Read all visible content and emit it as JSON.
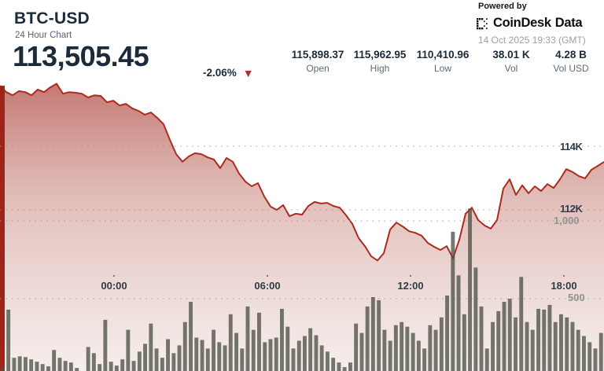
{
  "header": {
    "symbol": "BTC-USD",
    "subtitle": "24 Hour Chart",
    "price": "113,505.45",
    "change": "-2.06%",
    "change_direction": "down",
    "stats": [
      {
        "value": "115,898.37",
        "label": "Open"
      },
      {
        "value": "115,962.95",
        "label": "High"
      },
      {
        "value": "110,410.96",
        "label": "Low"
      },
      {
        "value": "38.01 K",
        "label": "Vol"
      },
      {
        "value": "4.28 B",
        "label": "Vol USD"
      }
    ]
  },
  "branding": {
    "powered_by": "Powered by",
    "logo_word1": "CoinDesk",
    "logo_word2": "Data",
    "timestamp": "14 Oct 2025 19:33 (GMT)"
  },
  "colors": {
    "line_red": "#ae2a1e",
    "stripe_red": "#9e2419",
    "triangle_red": "#b03226",
    "dark_navy": "#1c2b3a",
    "volume_bar": "rgba(78,82,70,0.78)",
    "grid_dot": "#9a948f"
  },
  "chart_data": {
    "type": "area",
    "title": "BTC-USD 24 Hour Chart",
    "x_ticks": [
      "00:00",
      "06:00",
      "12:00",
      "18:00"
    ],
    "price_axis_labels": [
      "114K",
      "112K"
    ],
    "volume_axis_labels": [
      "1,000",
      "500"
    ],
    "price_axis_range_visible": [
      110000,
      116000
    ],
    "volume_axis_range": [
      0,
      1100
    ],
    "grid": "dotted",
    "legend_position": "none",
    "price_series_usd": [
      115898,
      115700,
      115600,
      115730,
      115700,
      115600,
      115780,
      115700,
      115850,
      115963,
      115650,
      115700,
      115680,
      115650,
      115530,
      115600,
      115580,
      115380,
      115430,
      115280,
      115330,
      115190,
      115110,
      114990,
      115060,
      114890,
      114690,
      114200,
      113750,
      113510,
      113680,
      113780,
      113750,
      113650,
      113580,
      113310,
      113630,
      113510,
      113140,
      112890,
      112740,
      112840,
      112420,
      112100,
      112000,
      112150,
      111800,
      111880,
      111850,
      112120,
      112250,
      112200,
      112220,
      112120,
      112070,
      111830,
      111560,
      111110,
      110860,
      110540,
      110410,
      110640,
      111380,
      111600,
      111480,
      111330,
      111280,
      111190,
      110960,
      110840,
      110740,
      110860,
      110480,
      111060,
      111880,
      112070,
      111680,
      111510,
      111410,
      111680,
      112670,
      112960,
      112470,
      112770,
      112520,
      112740,
      112590,
      112810,
      112690,
      112960,
      113280,
      113190,
      113060,
      112990,
      113260,
      113380,
      113505
    ],
    "volume_series": [
      60,
      430,
      120,
      130,
      125,
      110,
      95,
      80,
      65,
      170,
      120,
      100,
      90,
      55,
      35,
      190,
      150,
      80,
      364,
      95,
      70,
      110,
      300,
      100,
      160,
      210,
      340,
      180,
      120,
      240,
      150,
      200,
      350,
      480,
      250,
      235,
      180,
      300,
      220,
      200,
      400,
      280,
      180,
      450,
      300,
      410,
      220,
      240,
      250,
      435,
      320,
      180,
      230,
      260,
      310,
      265,
      200,
      160,
      120,
      90,
      60,
      90,
      340,
      280,
      450,
      510,
      490,
      300,
      230,
      330,
      350,
      320,
      280,
      230,
      180,
      330,
      300,
      380,
      520,
      930,
      650,
      400,
      1080,
      700,
      450,
      180,
      350,
      420,
      480,
      500,
      380,
      640,
      350,
      300,
      435,
      430,
      460,
      350,
      400,
      380,
      350,
      300,
      260,
      220,
      180,
      280
    ]
  }
}
